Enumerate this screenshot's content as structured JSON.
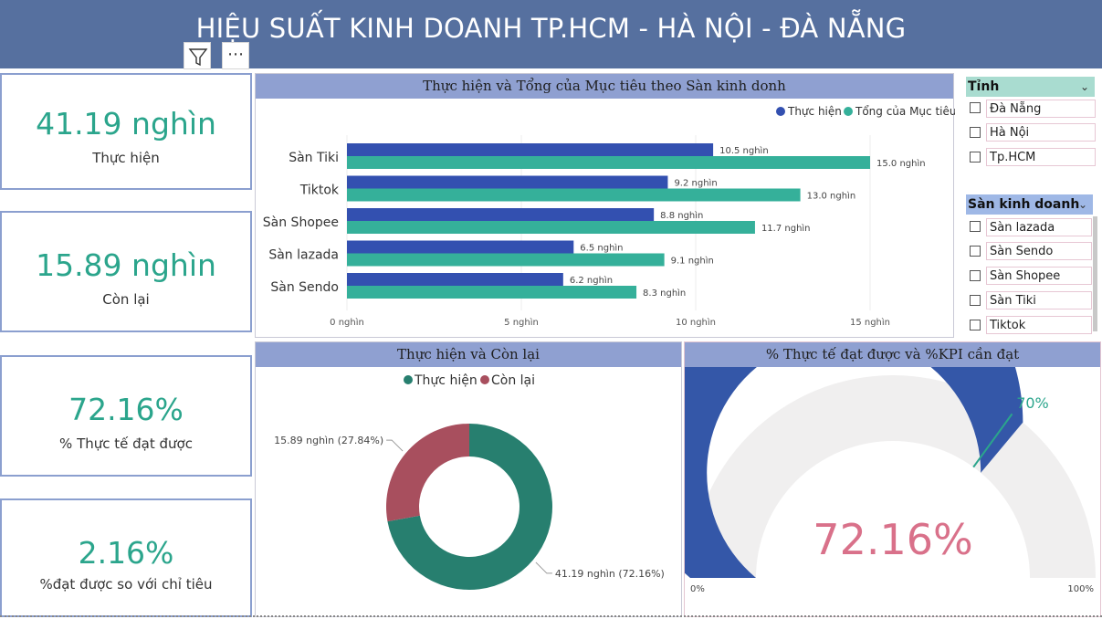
{
  "header": {
    "title": "HIỆU SUẤT KINH DOANH TP.HCM - HÀ NỘI - ĐÀ NẴNG"
  },
  "toolbar": {
    "filter_icon": "filter-icon",
    "more_label": "⋯"
  },
  "cards": [
    {
      "value": "41.19 nghìn",
      "label": "Thực hiện"
    },
    {
      "value": "15.89 nghìn",
      "label": "Còn lại"
    },
    {
      "value": "72.16%",
      "label": "% Thực tế đạt được"
    },
    {
      "value": "2.16%",
      "label": "%đạt được so với chỉ tiêu"
    }
  ],
  "bar_panel": {
    "title": "Thực hiện và Tổng của Mục tiêu theo Sàn kinh donh"
  },
  "donut_panel": {
    "title": "Thực hiện và Còn lại"
  },
  "gauge_panel": {
    "title": "% Thực tế đạt được và %KPI cần đạt",
    "value_label": "72.16%",
    "target_label": "70%",
    "min_label": "0%",
    "max_label": "100%",
    "value": 72.16,
    "target": 70,
    "colors": {
      "fill": "#3457a8",
      "track": "#f0efef",
      "target": "#2ba58c",
      "value_text": "#d9718a"
    }
  },
  "slicer_tinh": {
    "title": "Tỉnh",
    "items": [
      "Đà Nẵng",
      "Hà Nội",
      "Tp.HCM"
    ]
  },
  "slicer_san": {
    "title": "Sàn kinh doanh",
    "items": [
      "Sàn lazada",
      "Sàn Sendo",
      "Sàn Shopee",
      "Sàn Tiki",
      "Tiktok"
    ]
  },
  "chart_data": [
    {
      "type": "bar",
      "orientation": "horizontal",
      "title": "Thực hiện và Tổng của Mục tiêu theo Sàn kinh donh",
      "categories": [
        "Sàn Tiki",
        "Tiktok",
        "Sàn Shopee",
        "Sàn lazada",
        "Sàn Sendo"
      ],
      "series": [
        {
          "name": "Thực hiện",
          "color": "#3350b0",
          "values": [
            10.5,
            9.2,
            8.8,
            6.5,
            6.2
          ],
          "labels": [
            "10.5 nghìn",
            "9.2 nghìn",
            "8.8 nghìn",
            "6.5 nghìn",
            "6.2 nghìn"
          ]
        },
        {
          "name": "Tổng của Mục tiêu",
          "color": "#35b09a",
          "values": [
            15.0,
            13.0,
            11.7,
            9.1,
            8.3
          ],
          "labels": [
            "15.0 nghìn",
            "13.0 nghìn",
            "11.7 nghìn",
            "9.1 nghìn",
            "8.3 nghìn"
          ]
        }
      ],
      "xlim": [
        0,
        16.5
      ],
      "x_ticks": [
        0,
        5,
        10,
        15
      ],
      "x_tick_labels": [
        "0 nghìn",
        "5 nghìn",
        "10 nghìn",
        "15 nghìn"
      ],
      "legend": "top-right",
      "grid": true
    },
    {
      "type": "pie",
      "donut": true,
      "title": "Thực hiện và Còn lại",
      "legend": "top-center",
      "slices": [
        {
          "name": "Thực hiện",
          "value": 41.19,
          "color": "#277f6f",
          "label": "41.19 nghìn (72.16%)"
        },
        {
          "name": "Còn lại",
          "value": 15.89,
          "color": "#a84f5e",
          "label": "15.89 nghìn (27.84%)"
        }
      ]
    }
  ]
}
